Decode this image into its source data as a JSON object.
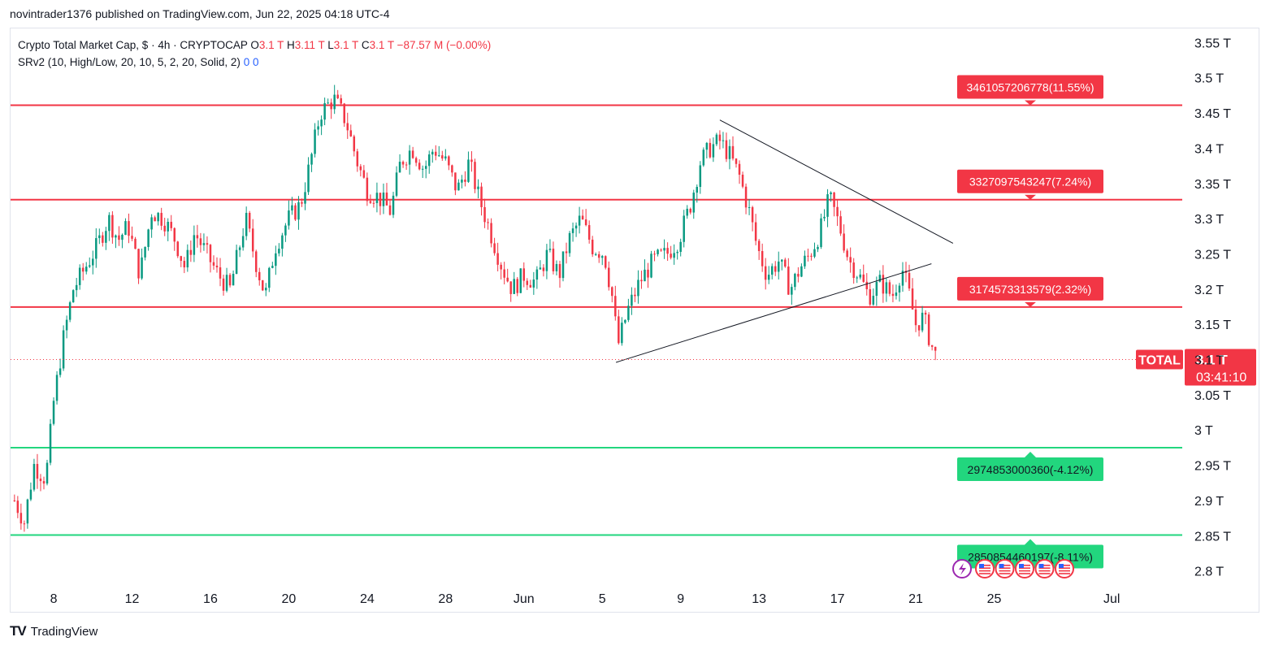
{
  "header": {
    "text": "novintrader1376 published on TradingView.com, Jun 22, 2025 04:18 UTC-4"
  },
  "legend": {
    "symbol": "Crypto Total Market Cap, $ · 4h · CRYPTOCAP",
    "o_label": "O",
    "o_val": "3.1 T",
    "h_label": "H",
    "h_val": "3.11 T",
    "l_label": "L",
    "l_val": "3.1 T",
    "c_label": "C",
    "c_val": "3.1 T",
    "change": "−87.57 M (−0.00%)",
    "indicator": "SRv2 (10, High/Low, 20, 10, 5, 2, 20, Solid, 2)",
    "ind_v1": "0",
    "ind_v2": "0"
  },
  "footer": {
    "logo": "TV",
    "brand": "TradingView"
  },
  "colors": {
    "up": "#089981",
    "down": "#f23645",
    "support": "#22d67e",
    "resistance": "#f23645",
    "axis_text": "#131722"
  },
  "chart_data": {
    "type": "candlestick",
    "title": "Crypto Total Market Cap, $ · 4h · CRYPTOCAP",
    "timeframe": "4h",
    "y_unit": "T",
    "ylim": [
      2.78,
      3.57
    ],
    "y_ticks": [
      "3.55 T",
      "3.5 T",
      "3.45 T",
      "3.4 T",
      "3.35 T",
      "3.3 T",
      "3.25 T",
      "3.2 T",
      "3.15 T",
      "3.1 T",
      "3.05 T",
      "3 T",
      "2.95 T",
      "2.9 T",
      "2.85 T",
      "2.8 T"
    ],
    "y_tick_values": [
      3.55,
      3.5,
      3.45,
      3.4,
      3.35,
      3.3,
      3.25,
      3.2,
      3.15,
      3.1,
      3.05,
      3.0,
      2.95,
      2.9,
      2.85,
      2.8
    ],
    "x_ticks": [
      {
        "label": "8",
        "day": 8
      },
      {
        "label": "12",
        "day": 12
      },
      {
        "label": "16",
        "day": 16
      },
      {
        "label": "20",
        "day": 20
      },
      {
        "label": "24",
        "day": 24
      },
      {
        "label": "28",
        "day": 28
      },
      {
        "label": "Jun",
        "day": 32
      },
      {
        "label": "5",
        "day": 36
      },
      {
        "label": "9",
        "day": 40
      },
      {
        "label": "13",
        "day": 44
      },
      {
        "label": "17",
        "day": 48
      },
      {
        "label": "21",
        "day": 52
      },
      {
        "label": "25",
        "day": 56
      },
      {
        "label": "Jul",
        "day": 62
      }
    ],
    "x_range_days": [
      5.8,
      65.6
    ],
    "levels": [
      {
        "value": 3.461,
        "label": "3461057206778(11.55%)",
        "kind": "resistance"
      },
      {
        "value": 3.327,
        "label": "3327097543247(7.24%)",
        "kind": "resistance"
      },
      {
        "value": 3.1746,
        "label": "3174573313579(2.32%)",
        "kind": "resistance"
      },
      {
        "value": 2.9749,
        "label": "2974853000360(-4.12%)",
        "kind": "support"
      },
      {
        "value": 2.8509,
        "label": "2850854460197(-8.11%)",
        "kind": "support"
      }
    ],
    "trendlines": [
      {
        "from": {
          "day": 42.0,
          "value": 3.44
        },
        "to": {
          "day": 53.9,
          "value": 3.265
        }
      },
      {
        "from": {
          "day": 36.7,
          "value": 3.096
        },
        "to": {
          "day": 52.8,
          "value": 3.236
        }
      }
    ],
    "current": {
      "day": 53.0,
      "value": 3.1,
      "tag": "TOTAL",
      "price_label": "3.1 T",
      "countdown": "03:41:10"
    },
    "anchors": [
      [
        6.0,
        2.9
      ],
      [
        6.5,
        2.87
      ],
      [
        7.0,
        2.95
      ],
      [
        7.6,
        2.93
      ],
      [
        8.0,
        3.04
      ],
      [
        8.5,
        3.13
      ],
      [
        9.0,
        3.2
      ],
      [
        9.6,
        3.23
      ],
      [
        10.2,
        3.26
      ],
      [
        10.8,
        3.3
      ],
      [
        11.3,
        3.27
      ],
      [
        11.8,
        3.29
      ],
      [
        12.4,
        3.22
      ],
      [
        13.0,
        3.31
      ],
      [
        13.6,
        3.3
      ],
      [
        14.2,
        3.27
      ],
      [
        14.7,
        3.23
      ],
      [
        15.2,
        3.28
      ],
      [
        15.8,
        3.25
      ],
      [
        16.4,
        3.22
      ],
      [
        17.0,
        3.2
      ],
      [
        17.8,
        3.3
      ],
      [
        18.3,
        3.24
      ],
      [
        18.8,
        3.19
      ],
      [
        19.3,
        3.26
      ],
      [
        20.0,
        3.3
      ],
      [
        20.6,
        3.32
      ],
      [
        21.1,
        3.38
      ],
      [
        21.6,
        3.45
      ],
      [
        22.3,
        3.47
      ],
      [
        22.9,
        3.44
      ],
      [
        23.5,
        3.38
      ],
      [
        24.0,
        3.34
      ],
      [
        24.6,
        3.33
      ],
      [
        25.2,
        3.31
      ],
      [
        25.7,
        3.38
      ],
      [
        26.3,
        3.4
      ],
      [
        26.9,
        3.37
      ],
      [
        27.4,
        3.4
      ],
      [
        28.0,
        3.38
      ],
      [
        28.6,
        3.34
      ],
      [
        29.2,
        3.38
      ],
      [
        29.7,
        3.33
      ],
      [
        30.3,
        3.28
      ],
      [
        30.9,
        3.23
      ],
      [
        31.4,
        3.2
      ],
      [
        32.0,
        3.22
      ],
      [
        32.6,
        3.21
      ],
      [
        33.2,
        3.25
      ],
      [
        33.8,
        3.22
      ],
      [
        34.3,
        3.27
      ],
      [
        34.9,
        3.3
      ],
      [
        35.5,
        3.26
      ],
      [
        36.1,
        3.25
      ],
      [
        36.5,
        3.19
      ],
      [
        36.8,
        3.12
      ],
      [
        37.3,
        3.17
      ],
      [
        37.9,
        3.21
      ],
      [
        38.6,
        3.24
      ],
      [
        39.3,
        3.25
      ],
      [
        39.9,
        3.27
      ],
      [
        40.5,
        3.32
      ],
      [
        41.0,
        3.38
      ],
      [
        41.5,
        3.4
      ],
      [
        42.0,
        3.41
      ],
      [
        42.5,
        3.39
      ],
      [
        43.0,
        3.36
      ],
      [
        43.5,
        3.31
      ],
      [
        43.9,
        3.26
      ],
      [
        44.4,
        3.22
      ],
      [
        45.0,
        3.24
      ],
      [
        45.6,
        3.2
      ],
      [
        46.1,
        3.23
      ],
      [
        46.6,
        3.25
      ],
      [
        47.1,
        3.28
      ],
      [
        47.6,
        3.33
      ],
      [
        48.1,
        3.29
      ],
      [
        48.6,
        3.24
      ],
      [
        49.1,
        3.22
      ],
      [
        49.6,
        3.19
      ],
      [
        50.2,
        3.21
      ],
      [
        50.8,
        3.19
      ],
      [
        51.3,
        3.23
      ],
      [
        51.6,
        3.2
      ],
      [
        52.0,
        3.15
      ],
      [
        52.4,
        3.16
      ],
      [
        52.8,
        3.12
      ],
      [
        53.1,
        3.1
      ]
    ]
  }
}
